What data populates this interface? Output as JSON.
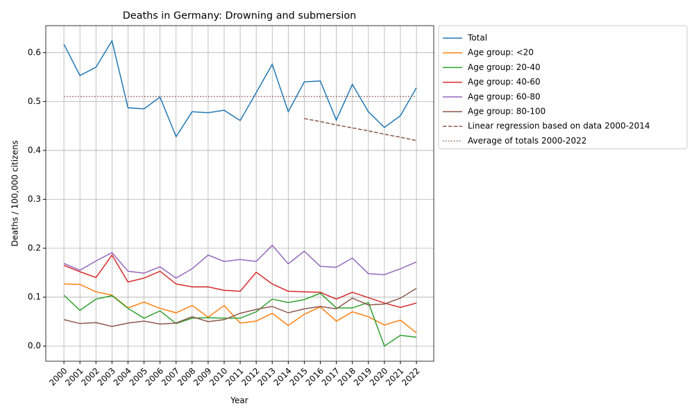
{
  "chart_data": {
    "type": "line",
    "title": "Deaths in Germany: Drowning and submersion",
    "x_label": "Year",
    "y_label": "Deaths / 100,000 citizens",
    "x": [
      2000,
      2001,
      2002,
      2003,
      2004,
      2005,
      2006,
      2007,
      2008,
      2009,
      2010,
      2011,
      2012,
      2013,
      2014,
      2015,
      2016,
      2017,
      2018,
      2019,
      2020,
      2021,
      2022
    ],
    "xlim": [
      1998.87,
      2023.08
    ],
    "xticks": [
      2000,
      2001,
      2002,
      2003,
      2004,
      2005,
      2006,
      2007,
      2008,
      2009,
      2010,
      2011,
      2012,
      2013,
      2014,
      2015,
      2016,
      2017,
      2018,
      2019,
      2020,
      2021,
      2022
    ],
    "ylim": [
      -0.031,
      0.655
    ],
    "yticks": [
      {
        "value": 0,
        "label": "0.0"
      },
      0.1,
      0.2,
      0.3,
      0.4,
      0.5,
      0.6
    ],
    "grid": true,
    "legend": "outside-right",
    "series": [
      {
        "name": "Total",
        "color": "#1f77b4",
        "dash": "solid",
        "values": [
          0.617,
          0.553,
          0.57,
          0.624,
          0.487,
          0.485,
          0.509,
          0.428,
          0.479,
          0.477,
          0.482,
          0.461,
          0.518,
          0.576,
          0.479,
          0.54,
          0.542,
          0.462,
          0.535,
          0.479,
          0.447,
          0.471,
          0.528
        ]
      },
      {
        "name": "Age group: <20",
        "color": "#ff7f0e",
        "dash": "solid",
        "values": [
          0.127,
          0.126,
          0.111,
          0.104,
          0.078,
          0.09,
          0.077,
          0.068,
          0.083,
          0.059,
          0.083,
          0.047,
          0.051,
          0.067,
          0.042,
          0.065,
          0.08,
          0.051,
          0.07,
          0.06,
          0.043,
          0.053,
          0.027
        ]
      },
      {
        "name": "Age group: 20-40",
        "color": "#2ca02c",
        "dash": "solid",
        "values": [
          0.104,
          0.073,
          0.096,
          0.103,
          0.077,
          0.057,
          0.072,
          0.046,
          0.057,
          0.058,
          0.057,
          0.057,
          0.07,
          0.096,
          0.089,
          0.095,
          0.108,
          0.078,
          0.078,
          0.089,
          0.0,
          0.022,
          0.018
        ]
      },
      {
        "name": "Age group: 40-60",
        "color": "#d62728",
        "dash": "solid",
        "values": [
          0.165,
          0.152,
          0.14,
          0.186,
          0.131,
          0.139,
          0.153,
          0.127,
          0.121,
          0.121,
          0.114,
          0.112,
          0.151,
          0.127,
          0.112,
          0.111,
          0.11,
          0.096,
          0.11,
          0.099,
          0.088,
          0.079,
          0.088
        ]
      },
      {
        "name": "Age group: 60-80",
        "color": "#9467bd",
        "dash": "solid",
        "values": [
          0.169,
          0.155,
          0.174,
          0.191,
          0.153,
          0.149,
          0.162,
          0.139,
          0.158,
          0.186,
          0.173,
          0.177,
          0.173,
          0.206,
          0.168,
          0.194,
          0.163,
          0.161,
          0.18,
          0.148,
          0.146,
          0.158,
          0.172
        ]
      },
      {
        "name": "Age group: 80-100",
        "color": "#8c564b",
        "dash": "solid",
        "values": [
          0.054,
          0.046,
          0.048,
          0.04,
          0.047,
          0.051,
          0.045,
          0.047,
          0.06,
          0.05,
          0.054,
          0.067,
          0.075,
          0.081,
          0.068,
          0.076,
          0.081,
          0.076,
          0.098,
          0.084,
          0.086,
          0.098,
          0.118
        ]
      },
      {
        "name": "Linear regression based on data 2000-2014",
        "color": "#8c564b",
        "dash": "dashed",
        "values": [
          null,
          null,
          null,
          null,
          null,
          null,
          null,
          null,
          null,
          null,
          null,
          null,
          null,
          null,
          null,
          0.465,
          0.459,
          0.452,
          0.446,
          0.44,
          0.433,
          0.427,
          0.42
        ]
      },
      {
        "name": "Average of totals 2000-2022",
        "color": "#8c564b",
        "dash": "dotted",
        "values": [
          0.51,
          0.51,
          0.51,
          0.51,
          0.51,
          0.51,
          0.51,
          0.51,
          0.51,
          0.51,
          0.51,
          0.51,
          0.51,
          0.51,
          0.51,
          0.51,
          0.51,
          0.51,
          0.51,
          0.51,
          0.51,
          0.51,
          0.51
        ]
      }
    ]
  }
}
